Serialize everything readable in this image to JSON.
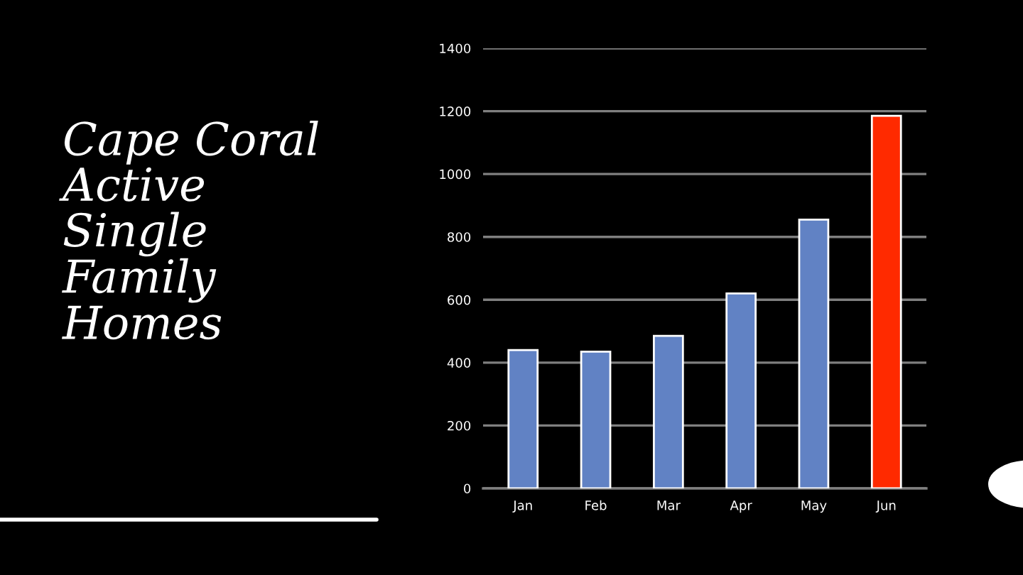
{
  "chart_data": {
    "type": "bar",
    "title": "Cape Coral\nActive\nSingle\nFamily\nHomes",
    "categories": [
      "Jan",
      "Feb",
      "Mar",
      "Apr",
      "May",
      "Jun"
    ],
    "values": [
      440,
      435,
      485,
      620,
      855,
      1185
    ],
    "colors": [
      "#6182c4",
      "#6182c4",
      "#6182c4",
      "#6182c4",
      "#6182c4",
      "#ff2a00"
    ],
    "ylim": [
      0,
      1400
    ],
    "yticks": [
      0,
      200,
      400,
      600,
      800,
      1000,
      1200,
      1400
    ],
    "grid": "y"
  }
}
